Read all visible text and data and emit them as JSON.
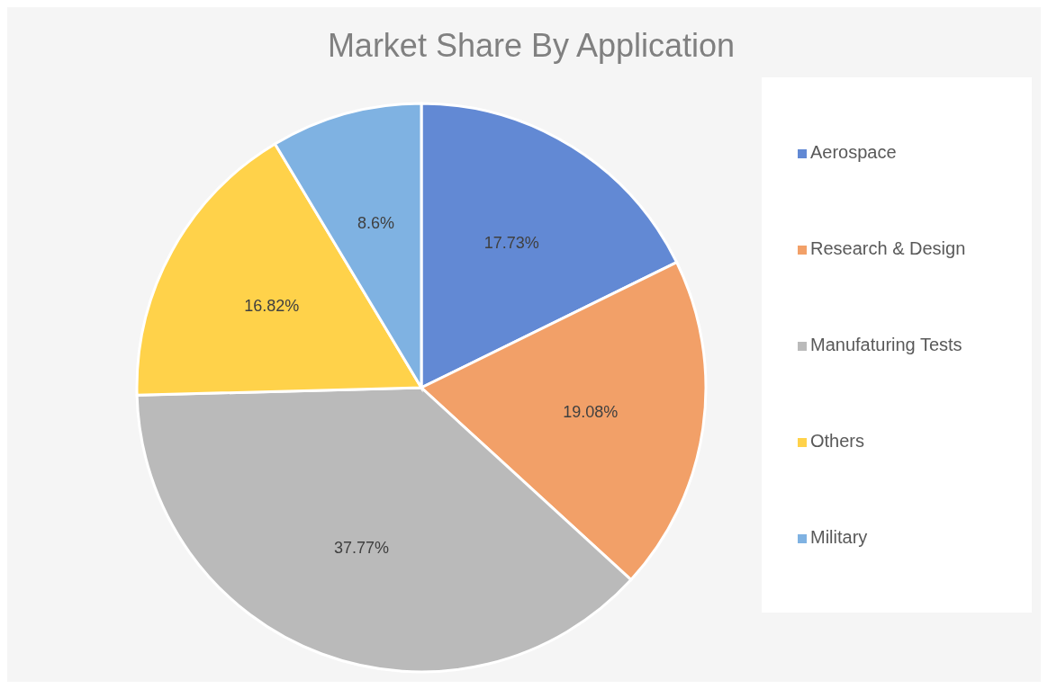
{
  "chart_data": {
    "type": "pie",
    "title": "Market Share By Application",
    "categories": [
      "Aerospace",
      "Research & Design",
      "Manufaturing Tests",
      "Others",
      "Military"
    ],
    "values": [
      17.73,
      19.08,
      37.77,
      16.82,
      8.6
    ],
    "colors": [
      "#6289d4",
      "#f2a068",
      "#bababa",
      "#ffd24a",
      "#7fb2e2"
    ],
    "value_labels": [
      "17.73%",
      "19.08%",
      "37.77%",
      "16.82%",
      "8.6%"
    ],
    "legend": "right"
  }
}
